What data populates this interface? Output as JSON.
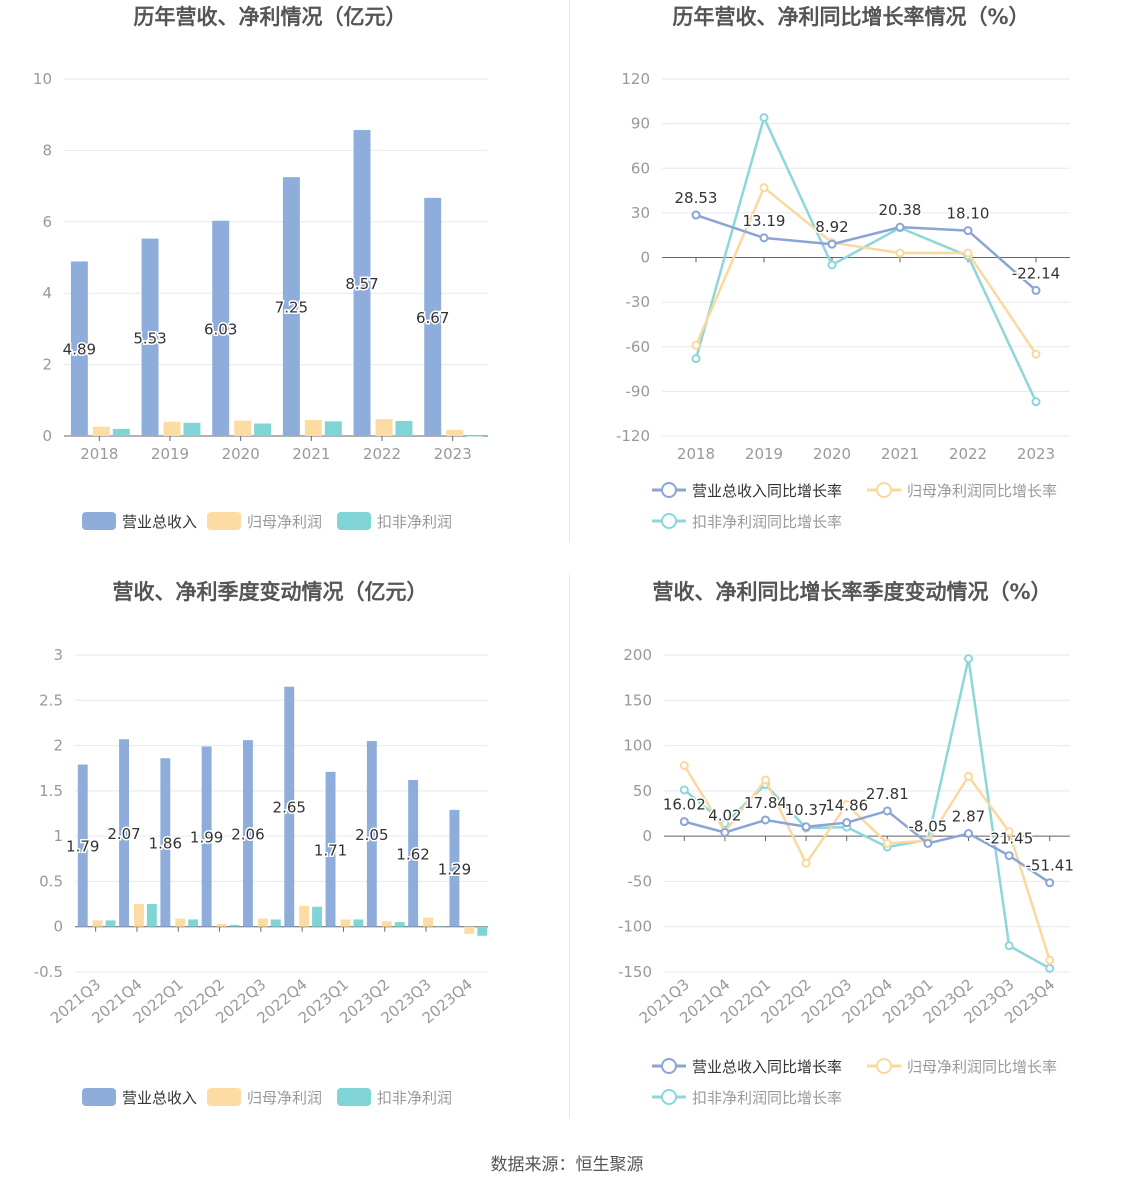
{
  "source_text": "数据来源：恒生聚源",
  "colors": {
    "revenue": "#8eadda",
    "net_profit": "#fcdca3",
    "deducted_profit": "#80d4d6",
    "revenue_line": "#8aa4d6",
    "net_line": "#fbd89c",
    "deducted_line": "#8dd6d9",
    "axis": "#999999",
    "grid": "#e6e8f0",
    "title": "#555555"
  },
  "chart_data": [
    {
      "id": "annual-amounts",
      "type": "bar",
      "title": "历年营收、净利情况（亿元）",
      "categories": [
        "2018",
        "2019",
        "2020",
        "2021",
        "2022",
        "2023"
      ],
      "ylim": [
        0,
        10
      ],
      "yticks": [
        0,
        2,
        4,
        6,
        8,
        10
      ],
      "ytick_labels": [
        "0",
        "2",
        "4",
        "6",
        "8",
        "10"
      ],
      "series": [
        {
          "name": "营业总收入",
          "values": [
            4.89,
            5.53,
            6.03,
            7.25,
            8.57,
            6.67
          ],
          "labels": [
            "4.89",
            "5.53",
            "6.03",
            "7.25",
            "8.57",
            "6.67"
          ]
        },
        {
          "name": "归母净利润",
          "values": [
            0.26,
            0.4,
            0.43,
            0.45,
            0.47,
            0.17
          ]
        },
        {
          "name": "扣非净利润",
          "values": [
            0.2,
            0.37,
            0.35,
            0.41,
            0.42,
            0.0
          ]
        }
      ],
      "legend": [
        "营业总收入",
        "归母净利润",
        "扣非净利润"
      ]
    },
    {
      "id": "annual-growth",
      "type": "line",
      "title": "历年营收、净利同比增长率情况（%）",
      "categories": [
        "2018",
        "2019",
        "2020",
        "2021",
        "2022",
        "2023"
      ],
      "ylim": [
        -120,
        120
      ],
      "yticks": [
        -120,
        -90,
        -60,
        -30,
        0,
        30,
        60,
        90,
        120
      ],
      "ytick_labels": [
        "-120",
        "-90",
        "-60",
        "-30",
        "0",
        "30",
        "60",
        "90",
        "120"
      ],
      "series": [
        {
          "name": "营业总收入同比增长率",
          "values": [
            28.53,
            13.19,
            8.92,
            20.38,
            18.1,
            -22.14
          ],
          "labels": [
            "28.53",
            "13.19",
            "8.92",
            "20.38",
            "18.10",
            "-22.14"
          ]
        },
        {
          "name": "归母净利润同比增长率",
          "values": [
            -59,
            47,
            10,
            3,
            3,
            -65
          ]
        },
        {
          "name": "扣非净利润同比增长率",
          "values": [
            -68,
            94,
            -5,
            20,
            1,
            -97
          ]
        }
      ],
      "legend": [
        "营业总收入同比增长率",
        "归母净利润同比增长率",
        "扣非净利润同比增长率"
      ]
    },
    {
      "id": "quarterly-amounts",
      "type": "bar",
      "title": "营收、净利季度变动情况（亿元）",
      "categories": [
        "2021Q3",
        "2021Q4",
        "2022Q1",
        "2022Q2",
        "2022Q3",
        "2022Q4",
        "2023Q1",
        "2023Q2",
        "2023Q3",
        "2023Q4"
      ],
      "ylim": [
        -0.5,
        3
      ],
      "yticks": [
        -0.5,
        0,
        0.5,
        1,
        1.5,
        2,
        2.5,
        3
      ],
      "ytick_labels": [
        "-0.5",
        "0",
        "0.5",
        "1",
        "1.5",
        "2",
        "2.5",
        "3"
      ],
      "series": [
        {
          "name": "营业总收入",
          "values": [
            1.79,
            2.07,
            1.86,
            1.99,
            2.06,
            2.65,
            1.71,
            2.05,
            1.62,
            1.29
          ],
          "labels": [
            "1.79",
            "2.07",
            "1.86",
            "1.99",
            "2.06",
            "2.65",
            "1.71",
            "2.05",
            "1.62",
            "1.29"
          ]
        },
        {
          "name": "归母净利润",
          "values": [
            0.07,
            0.25,
            0.09,
            0.03,
            0.09,
            0.23,
            0.08,
            0.06,
            0.1,
            -0.08
          ]
        },
        {
          "name": "扣非净利润",
          "values": [
            0.07,
            0.25,
            0.08,
            0.02,
            0.08,
            0.22,
            0.08,
            0.05,
            -0.01,
            -0.1
          ]
        }
      ],
      "legend": [
        "营业总收入",
        "归母净利润",
        "扣非净利润"
      ]
    },
    {
      "id": "quarterly-growth",
      "type": "line",
      "title": "营收、净利同比增长率季度变动情况（%）",
      "categories": [
        "2021Q3",
        "2021Q4",
        "2022Q1",
        "2022Q2",
        "2022Q3",
        "2022Q4",
        "2023Q1",
        "2023Q2",
        "2023Q3",
        "2023Q4"
      ],
      "ylim": [
        -150,
        200
      ],
      "yticks": [
        -150,
        -100,
        -50,
        0,
        50,
        100,
        150,
        200
      ],
      "ytick_labels": [
        "-150",
        "-100",
        "-50",
        "0",
        "50",
        "100",
        "150",
        "200"
      ],
      "series": [
        {
          "name": "营业总收入同比增长率",
          "values": [
            16.02,
            4.02,
            17.84,
            10.37,
            14.86,
            27.81,
            -8.05,
            2.87,
            -21.45,
            -51.41
          ],
          "labels": [
            "16.02",
            "4.02",
            "17.84",
            "10.37",
            "14.86",
            "27.81",
            "-8.05",
            "2.87",
            "-21.45",
            "-51.41"
          ]
        },
        {
          "name": "归母净利润同比增长率",
          "values": [
            78,
            5,
            62,
            -30,
            35,
            -8,
            -5,
            66,
            5,
            -137
          ]
        },
        {
          "name": "扣非净利润同比增长率",
          "values": [
            51,
            14,
            57,
            9,
            10,
            -12,
            -4,
            196,
            -121,
            -146
          ]
        }
      ],
      "legend": [
        "营业总收入同比增长率",
        "归母净利润同比增长率",
        "扣非净利润同比增长率"
      ]
    }
  ]
}
